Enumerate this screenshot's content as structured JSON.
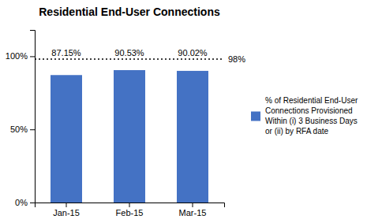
{
  "chart_data": {
    "type": "bar",
    "title": "Residential End-User Connections",
    "categories": [
      "Jan-15",
      "Feb-15",
      "Mar-15"
    ],
    "series": [
      {
        "name": "% of Residential End-User\nConnections Provisioned\nWithin (i) 3 Business Days\nor (ii) by RFA date",
        "color": "#4472C4",
        "values": [
          0.8715,
          0.9053,
          0.9002
        ],
        "value_labels": [
          "87.15%",
          "90.53%",
          "90.02%"
        ]
      }
    ],
    "data_labels": true,
    "ylim": [
      0,
      1.18
    ],
    "yticks": [
      {
        "value": 0.0,
        "label": "0%"
      },
      {
        "value": 0.5,
        "label": "50%"
      },
      {
        "value": 1.0,
        "label": "100%"
      }
    ],
    "annotations": [
      {
        "value": 0.98,
        "label": "98%",
        "line_style": "dotted"
      }
    ],
    "grid": false,
    "legend": "right"
  }
}
